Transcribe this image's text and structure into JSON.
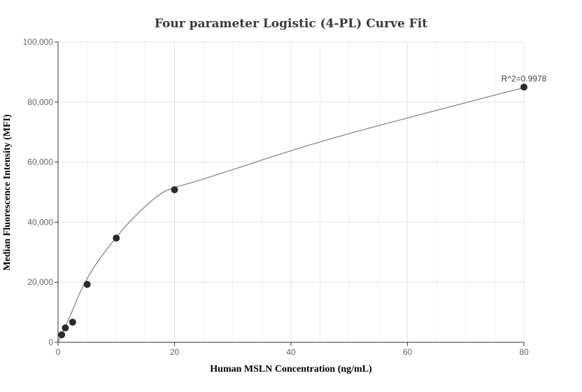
{
  "chart_data": {
    "type": "scatter",
    "title": "Four parameter Logistic (4-PL) Curve Fit",
    "xlabel": "Human MSLN Concentration (ng/mL)",
    "ylabel": "Median Fluorescence Intensity (MFI)",
    "xlim": [
      0,
      80
    ],
    "ylim": [
      0,
      100000
    ],
    "x_ticks": [
      0,
      20,
      40,
      60,
      80
    ],
    "x_tick_labels": [
      "0",
      "20",
      "40",
      "60",
      "80"
    ],
    "y_ticks": [
      0,
      20000,
      40000,
      60000,
      80000,
      100000
    ],
    "y_tick_labels": [
      "0",
      "20,000",
      "40,000",
      "60,000",
      "80,000",
      "100,000"
    ],
    "grid": true,
    "points": [
      {
        "x": 0.625,
        "y": 2500
      },
      {
        "x": 1.25,
        "y": 4800
      },
      {
        "x": 2.5,
        "y": 6700
      },
      {
        "x": 5,
        "y": 19300
      },
      {
        "x": 10,
        "y": 34700
      },
      {
        "x": 20,
        "y": 50800
      },
      {
        "x": 80,
        "y": 85000
      }
    ],
    "fit_curve": [
      {
        "x": 0,
        "y": 0
      },
      {
        "x": 2,
        "y": 8500
      },
      {
        "x": 4,
        "y": 17500
      },
      {
        "x": 6,
        "y": 24500
      },
      {
        "x": 8,
        "y": 30000
      },
      {
        "x": 10,
        "y": 35000
      },
      {
        "x": 12,
        "y": 39500
      },
      {
        "x": 14,
        "y": 43500
      },
      {
        "x": 16,
        "y": 47000
      },
      {
        "x": 18,
        "y": 49900
      },
      {
        "x": 20,
        "y": 51500
      },
      {
        "x": 24,
        "y": 53800
      },
      {
        "x": 30,
        "y": 57500
      },
      {
        "x": 40,
        "y": 63800
      },
      {
        "x": 50,
        "y": 69500
      },
      {
        "x": 60,
        "y": 74700
      },
      {
        "x": 70,
        "y": 79800
      },
      {
        "x": 80,
        "y": 84800
      }
    ],
    "annotation": {
      "text": "R^2=0.9978",
      "x": 80,
      "y": 85000
    }
  }
}
